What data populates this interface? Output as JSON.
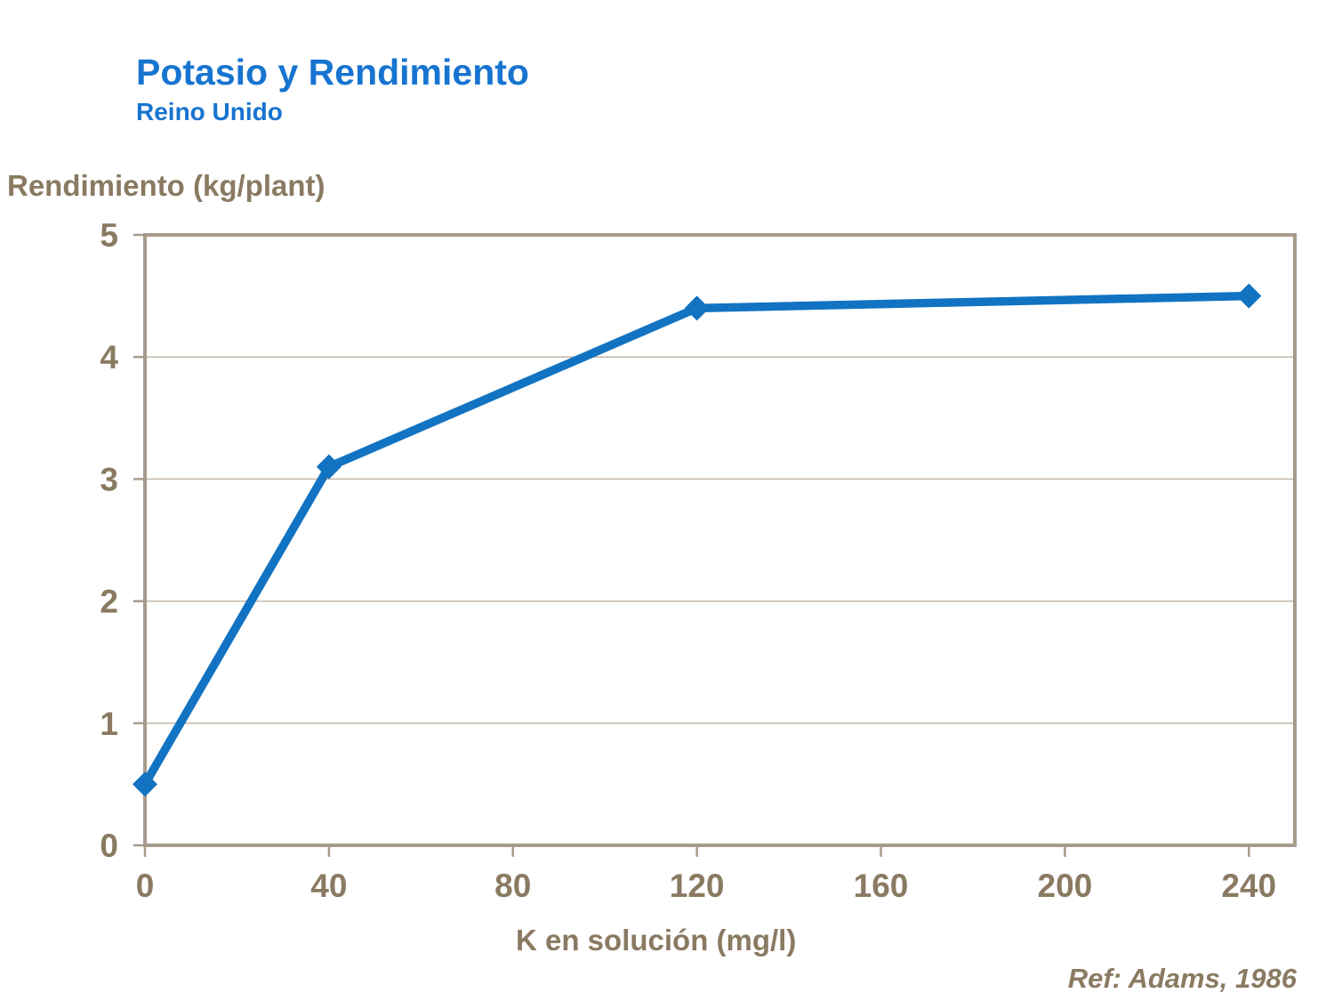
{
  "header": {
    "title": "Potasio y Rendimiento",
    "subtitle": "Reino Unido"
  },
  "footer": {
    "reference": "Ref: Adams, 1986"
  },
  "colors": {
    "title_blue": "#1774D0",
    "line_blue": "#1173C2",
    "text_tan": "#8A7A62",
    "axis_tan": "#A89B8B",
    "grid_tan": "#C2B7AA"
  },
  "chart_data": {
    "type": "line",
    "title": "Potasio y Rendimiento",
    "subtitle": "Reino Unido",
    "x": [
      0,
      40,
      120,
      240
    ],
    "values": [
      0.5,
      3.1,
      4.4,
      4.5
    ],
    "series_name": "Rendimiento",
    "xlabel": "K en solución (mg/l)",
    "ylabel": "Rendimiento (kg/plant)",
    "xlim": [
      0,
      250
    ],
    "ylim": [
      0,
      5
    ],
    "xticks": [
      0,
      40,
      80,
      120,
      160,
      200,
      240
    ],
    "yticks": [
      0,
      1,
      2,
      3,
      4,
      5
    ],
    "grid": "horizontal-only",
    "legend": "none",
    "marker": "diamond",
    "annotation": "Ref: Adams, 1986"
  }
}
